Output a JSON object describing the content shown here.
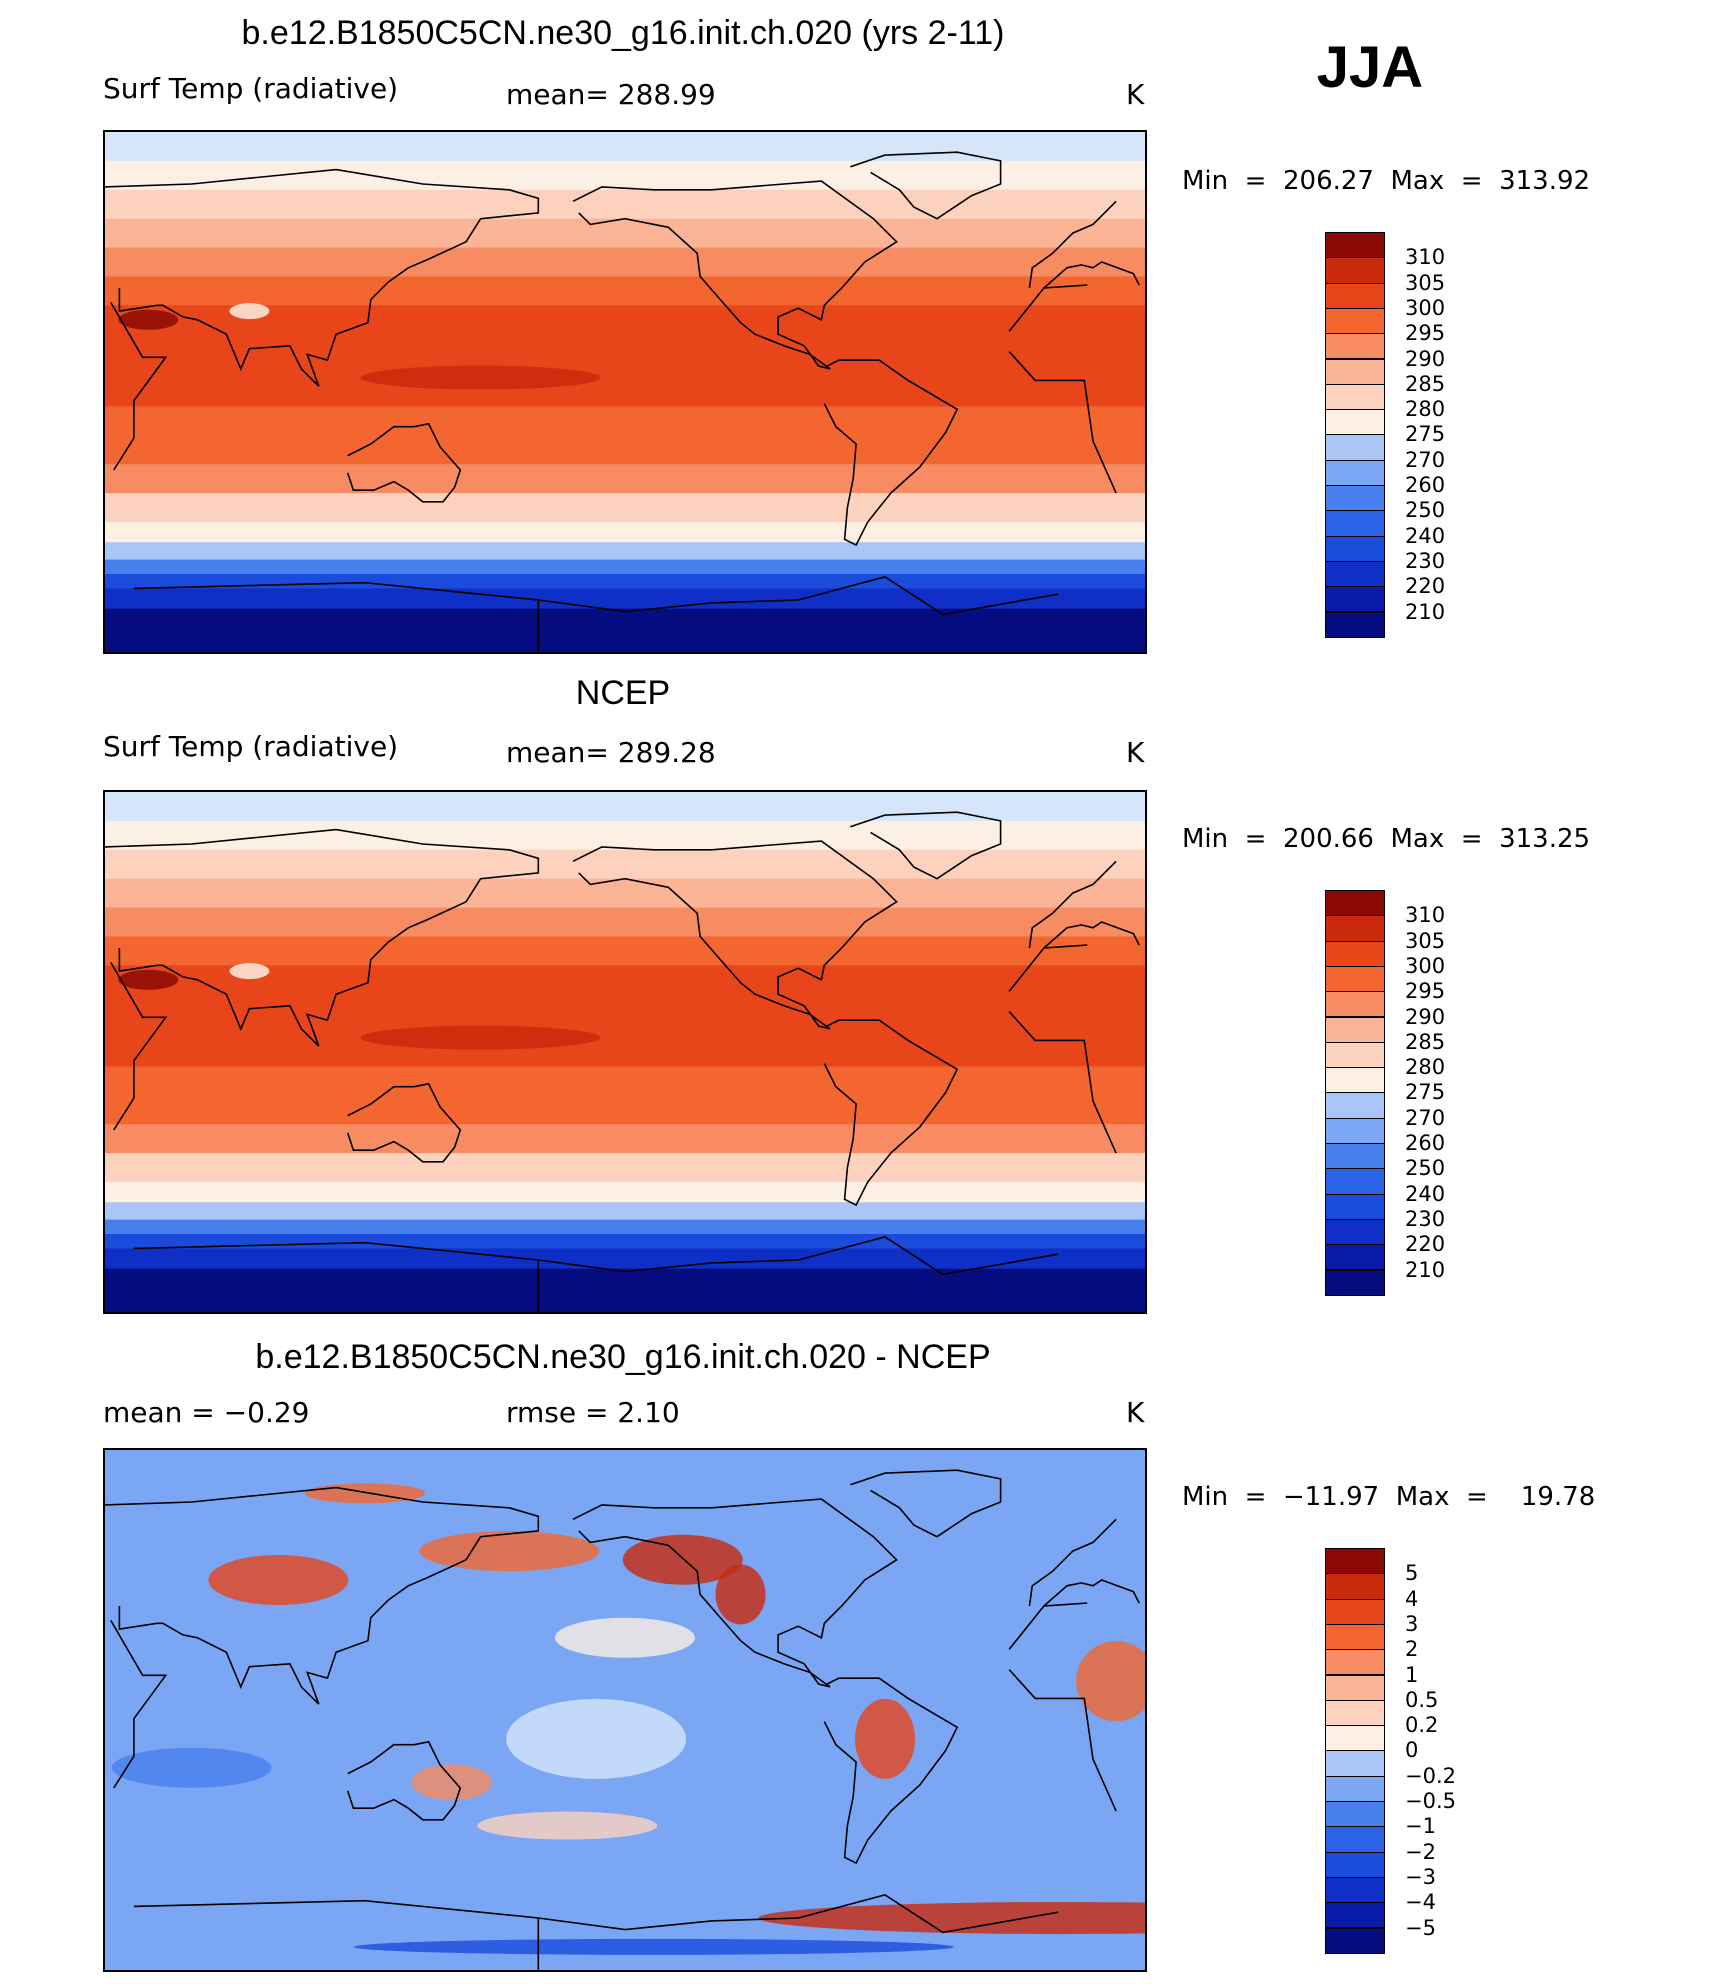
{
  "season": "JJA",
  "palettes": {
    "abs": [
      "#050d80",
      "#0a1aa8",
      "#0f2fc6",
      "#1a4bdb",
      "#2a63e6",
      "#4880ee",
      "#7aa6f3",
      "#a9c6f7",
      "#d5e6fb",
      "#fcefe3",
      "#fcd2bf",
      "#fbb496",
      "#f78b62",
      "#f4662f",
      "#e8451a",
      "#c92a0c",
      "#8c0a05"
    ],
    "diff": [
      "#050d80",
      "#0a1aa8",
      "#0f2fc6",
      "#1a4bdb",
      "#2a63e6",
      "#4880ee",
      "#7aa6f3",
      "#a9c6f7",
      "#d5e6fb",
      "#fcefe3",
      "#fcd2bf",
      "#fbb496",
      "#f78b62",
      "#f4662f",
      "#e8451a",
      "#c92a0c",
      "#8c0a05"
    ]
  },
  "chart_data": [
    {
      "type": "heatmap",
      "title": "b.e12.B1850C5CN.ne30_g16.init.ch.020 (yrs 2-11)",
      "variable": "Surf Temp (radiative)",
      "mean_text": "mean=  288.99",
      "units": "K",
      "min_max_text": "Min  =  206.27  Max  =  313.92",
      "min": 206.27,
      "max": 313.92,
      "colorbar_levels": [
        "310",
        "305",
        "300",
        "295",
        "290",
        "285",
        "280",
        "275",
        "270",
        "260",
        "250",
        "240",
        "230",
        "220",
        "210"
      ],
      "palette": "abs"
    },
    {
      "type": "heatmap",
      "title": "NCEP",
      "variable": "Surf Temp (radiative)",
      "mean_text": "mean=  289.28",
      "units": "K",
      "min_max_text": "Min  =  200.66  Max  =  313.25",
      "min": 200.66,
      "max": 313.25,
      "colorbar_levels": [
        "310",
        "305",
        "300",
        "295",
        "290",
        "285",
        "280",
        "275",
        "270",
        "260",
        "250",
        "240",
        "230",
        "220",
        "210"
      ],
      "palette": "abs"
    },
    {
      "type": "heatmap",
      "title": "b.e12.B1850C5CN.ne30_g16.init.ch.020 - NCEP",
      "mean_text": "mean  =    −0.29",
      "rmse_text": "rmse  =     2.10",
      "units": "K",
      "min_max_text": "Min  =  −11.97  Max  =    19.78",
      "min": -11.97,
      "max": 19.78,
      "colorbar_levels": [
        "5",
        "4",
        "3",
        "2",
        "1",
        "0.5",
        "0.2",
        "0",
        "−0.2",
        "−0.5",
        "−1",
        "−2",
        "−3",
        "−4",
        "−5"
      ],
      "palette": "diff"
    }
  ]
}
